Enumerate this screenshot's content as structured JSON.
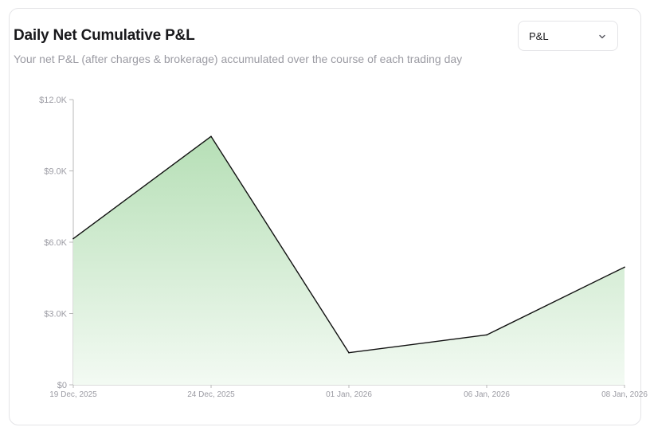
{
  "card": {
    "title": "Daily Net Cumulative P&L",
    "subtitle": "Your net P&L (after charges & brokerage) accumulated over the course of each trading day"
  },
  "metric_select": {
    "value": "P&L",
    "icon": "chevron-down-icon"
  },
  "chart_data": {
    "type": "area",
    "title": "Daily Net Cumulative P&L",
    "x": [
      "19 Dec, 2025",
      "24 Dec, 2025",
      "01 Jan, 2026",
      "06 Jan, 2026",
      "08 Jan, 2026"
    ],
    "series": [
      {
        "values": [
          6150,
          10450,
          1350,
          2100,
          4950
        ]
      }
    ],
    "y_ticks": [
      "$0",
      "$3.0K",
      "$6.0K",
      "$9.0K",
      "$12.0K"
    ],
    "ylim": [
      0,
      12000
    ],
    "xlabel": "",
    "ylabel": "",
    "grid": false,
    "colors": {
      "line": "#111111",
      "fill_top": "#b6dfb6",
      "fill_bottom": "#f3faf3",
      "axis": "#b8b8b8"
    }
  }
}
